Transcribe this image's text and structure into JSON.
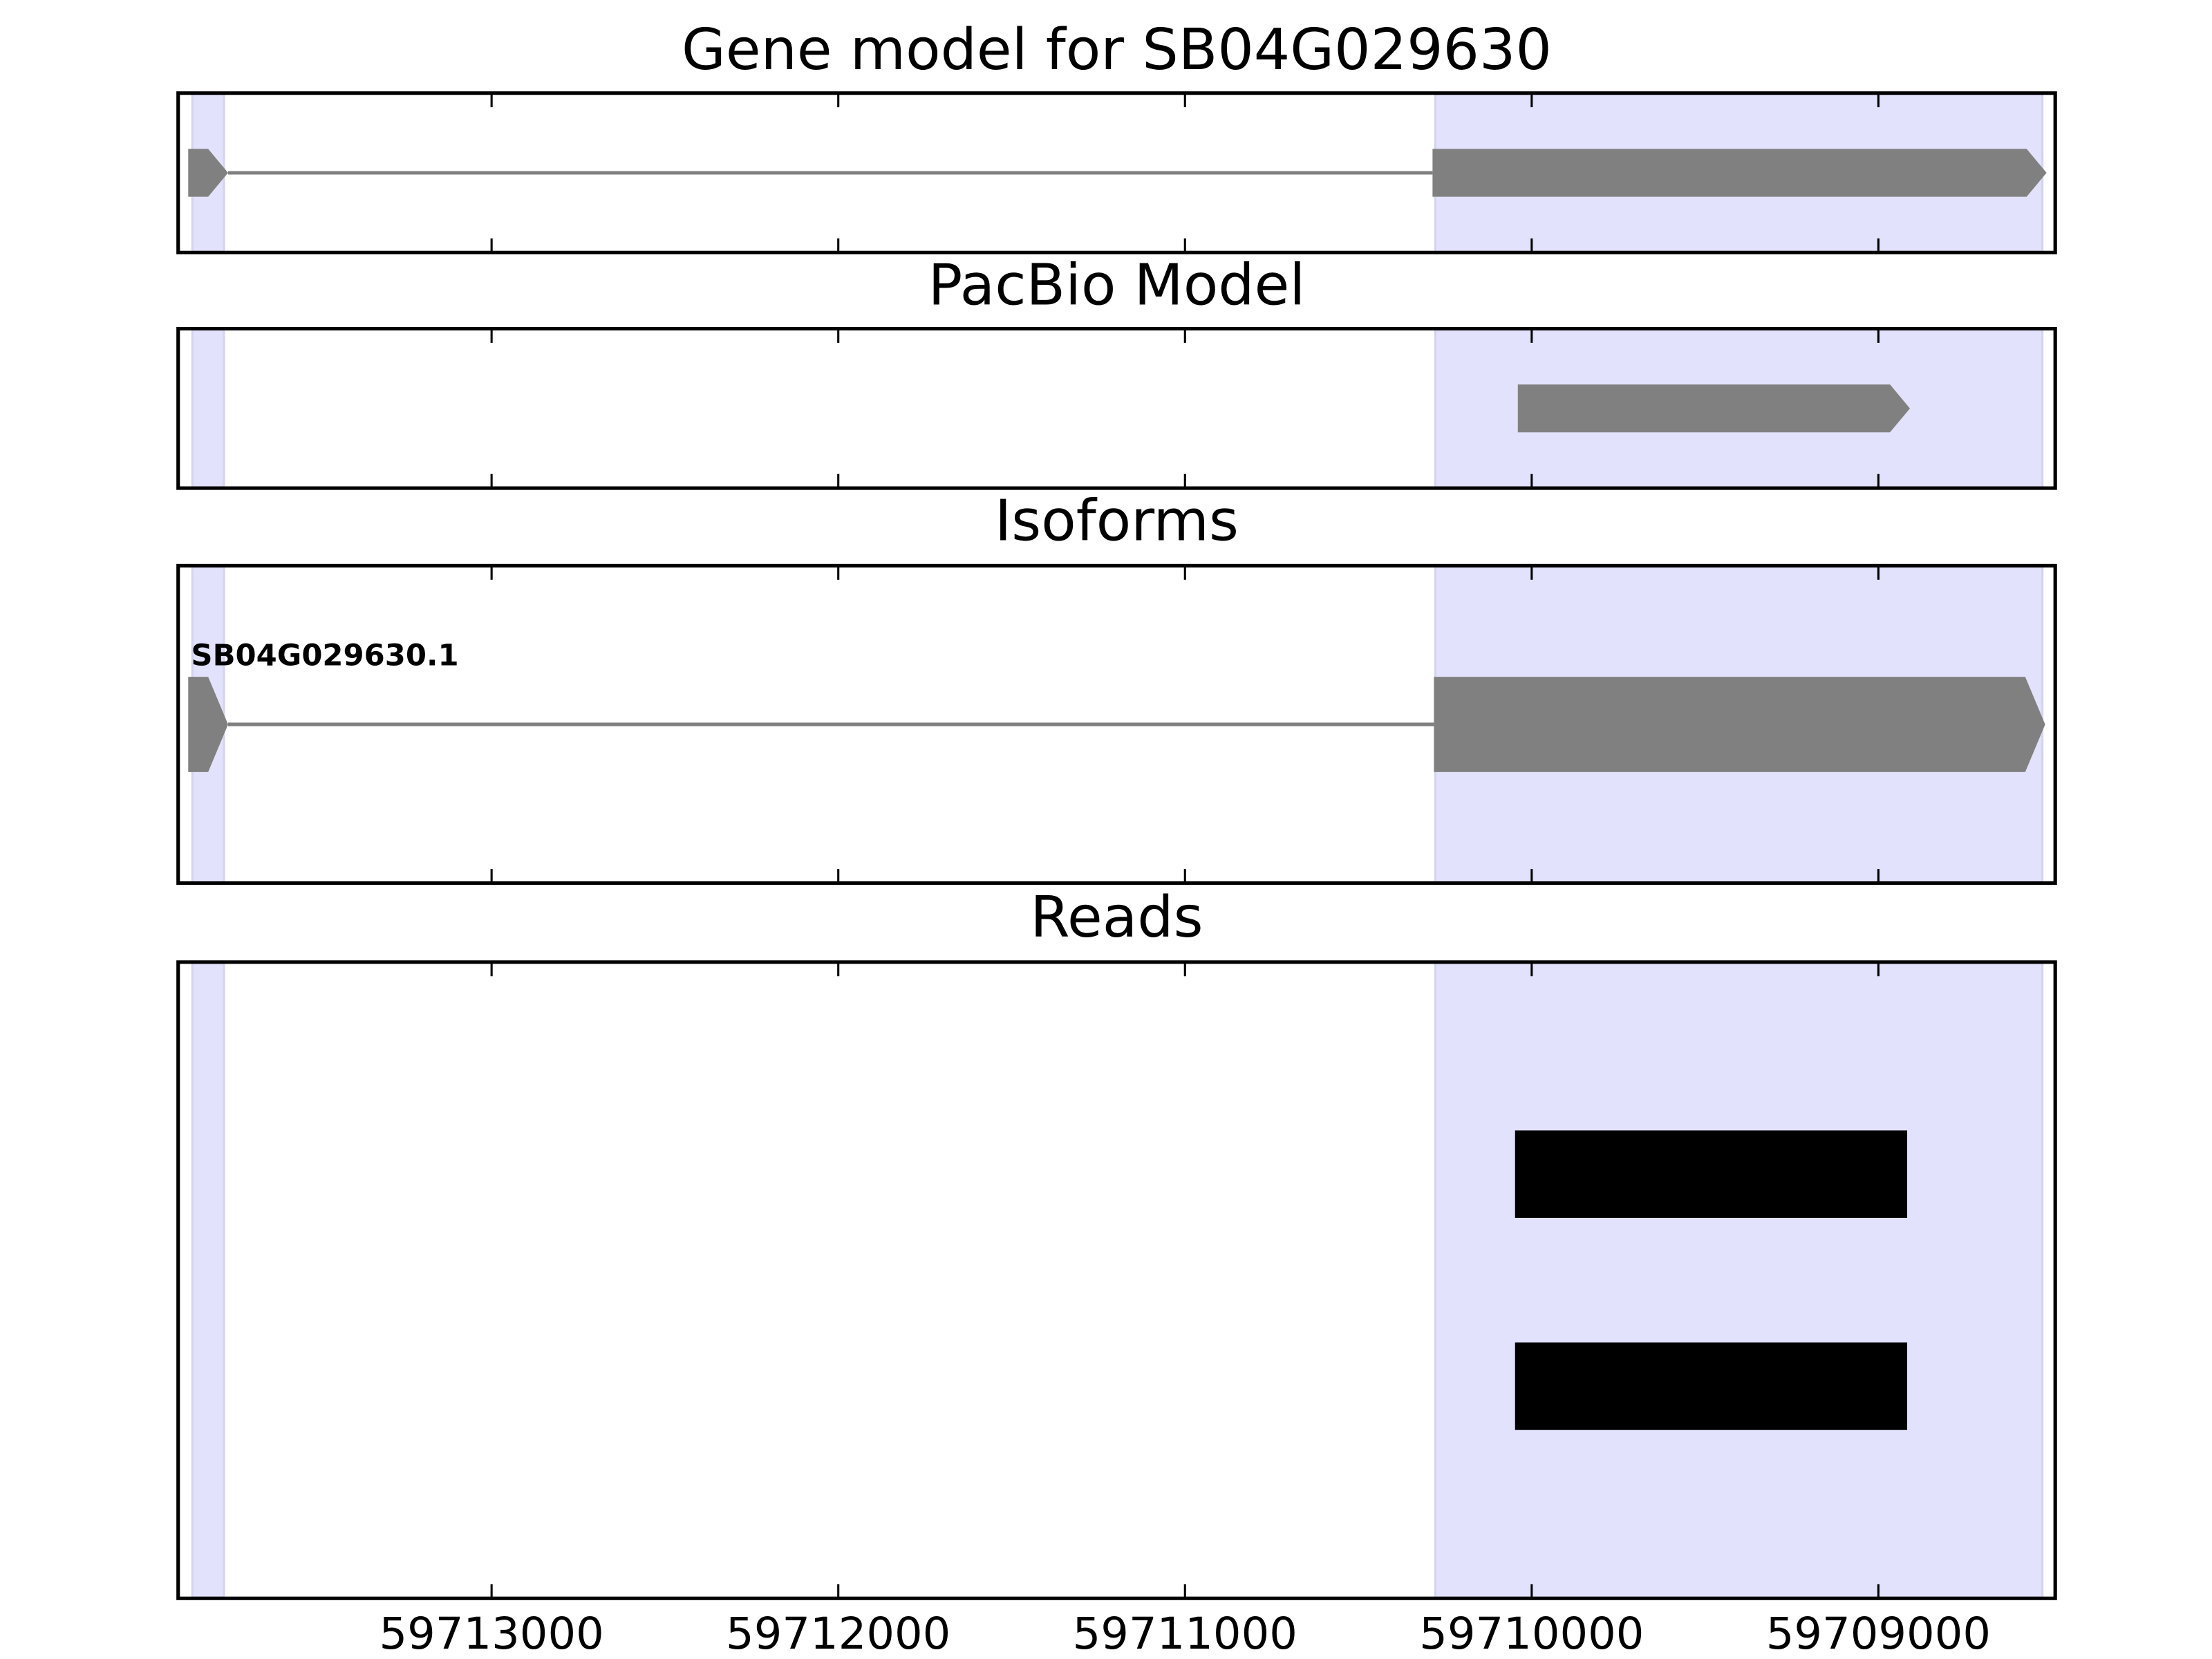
{
  "chart_data": [
    {
      "type": "gene",
      "title": "Gene model for SB04G029630",
      "xlim": [
        59713904,
        59708490
      ],
      "xticks": [
        59713000,
        59712000,
        59711000,
        59710000,
        59709000
      ],
      "xtick_labels": false,
      "highlights": [
        [
          59713863,
          59713772
        ],
        [
          59710278,
          59708527
        ]
      ],
      "highlight_color": "#e2e2fc",
      "exons": [
        [
          59713875,
          59713760
        ],
        [
          59710286,
          59708515
        ]
      ],
      "color": "#808080"
    },
    {
      "type": "gene",
      "title": "PacBio Model",
      "xlim": [
        59713904,
        59708490
      ],
      "xticks": [
        59713000,
        59712000,
        59711000,
        59710000,
        59709000
      ],
      "xtick_labels": false,
      "highlights": [
        [
          59713863,
          59713772
        ],
        [
          59710278,
          59708527
        ]
      ],
      "highlight_color": "#e2e2fc",
      "exons": [
        [
          59710040,
          59708909
        ]
      ],
      "color": "#808080"
    },
    {
      "type": "gene",
      "title": "Isoforms",
      "label": "SB04G029630.1",
      "xlim": [
        59713904,
        59708490
      ],
      "xticks": [
        59713000,
        59712000,
        59711000,
        59710000,
        59709000
      ],
      "xtick_labels": false,
      "highlights": [
        [
          59713863,
          59713772
        ],
        [
          59710278,
          59708527
        ]
      ],
      "highlight_color": "#e2e2fc",
      "exons": [
        [
          59713875,
          59713760
        ],
        [
          59710282,
          59708519
        ]
      ],
      "color": "#808080"
    },
    {
      "type": "reads",
      "title": "Reads",
      "xlim": [
        59713904,
        59708490
      ],
      "xticks": [
        59713000,
        59712000,
        59711000,
        59710000,
        59709000
      ],
      "xtick_labels": true,
      "highlights": [
        [
          59713863,
          59713772
        ],
        [
          59710278,
          59708527
        ]
      ],
      "highlight_color": "#e2e2fc",
      "reads": [
        [
          59710048,
          59708917
        ],
        [
          59710048,
          59708917
        ]
      ],
      "color": "#000000"
    }
  ]
}
